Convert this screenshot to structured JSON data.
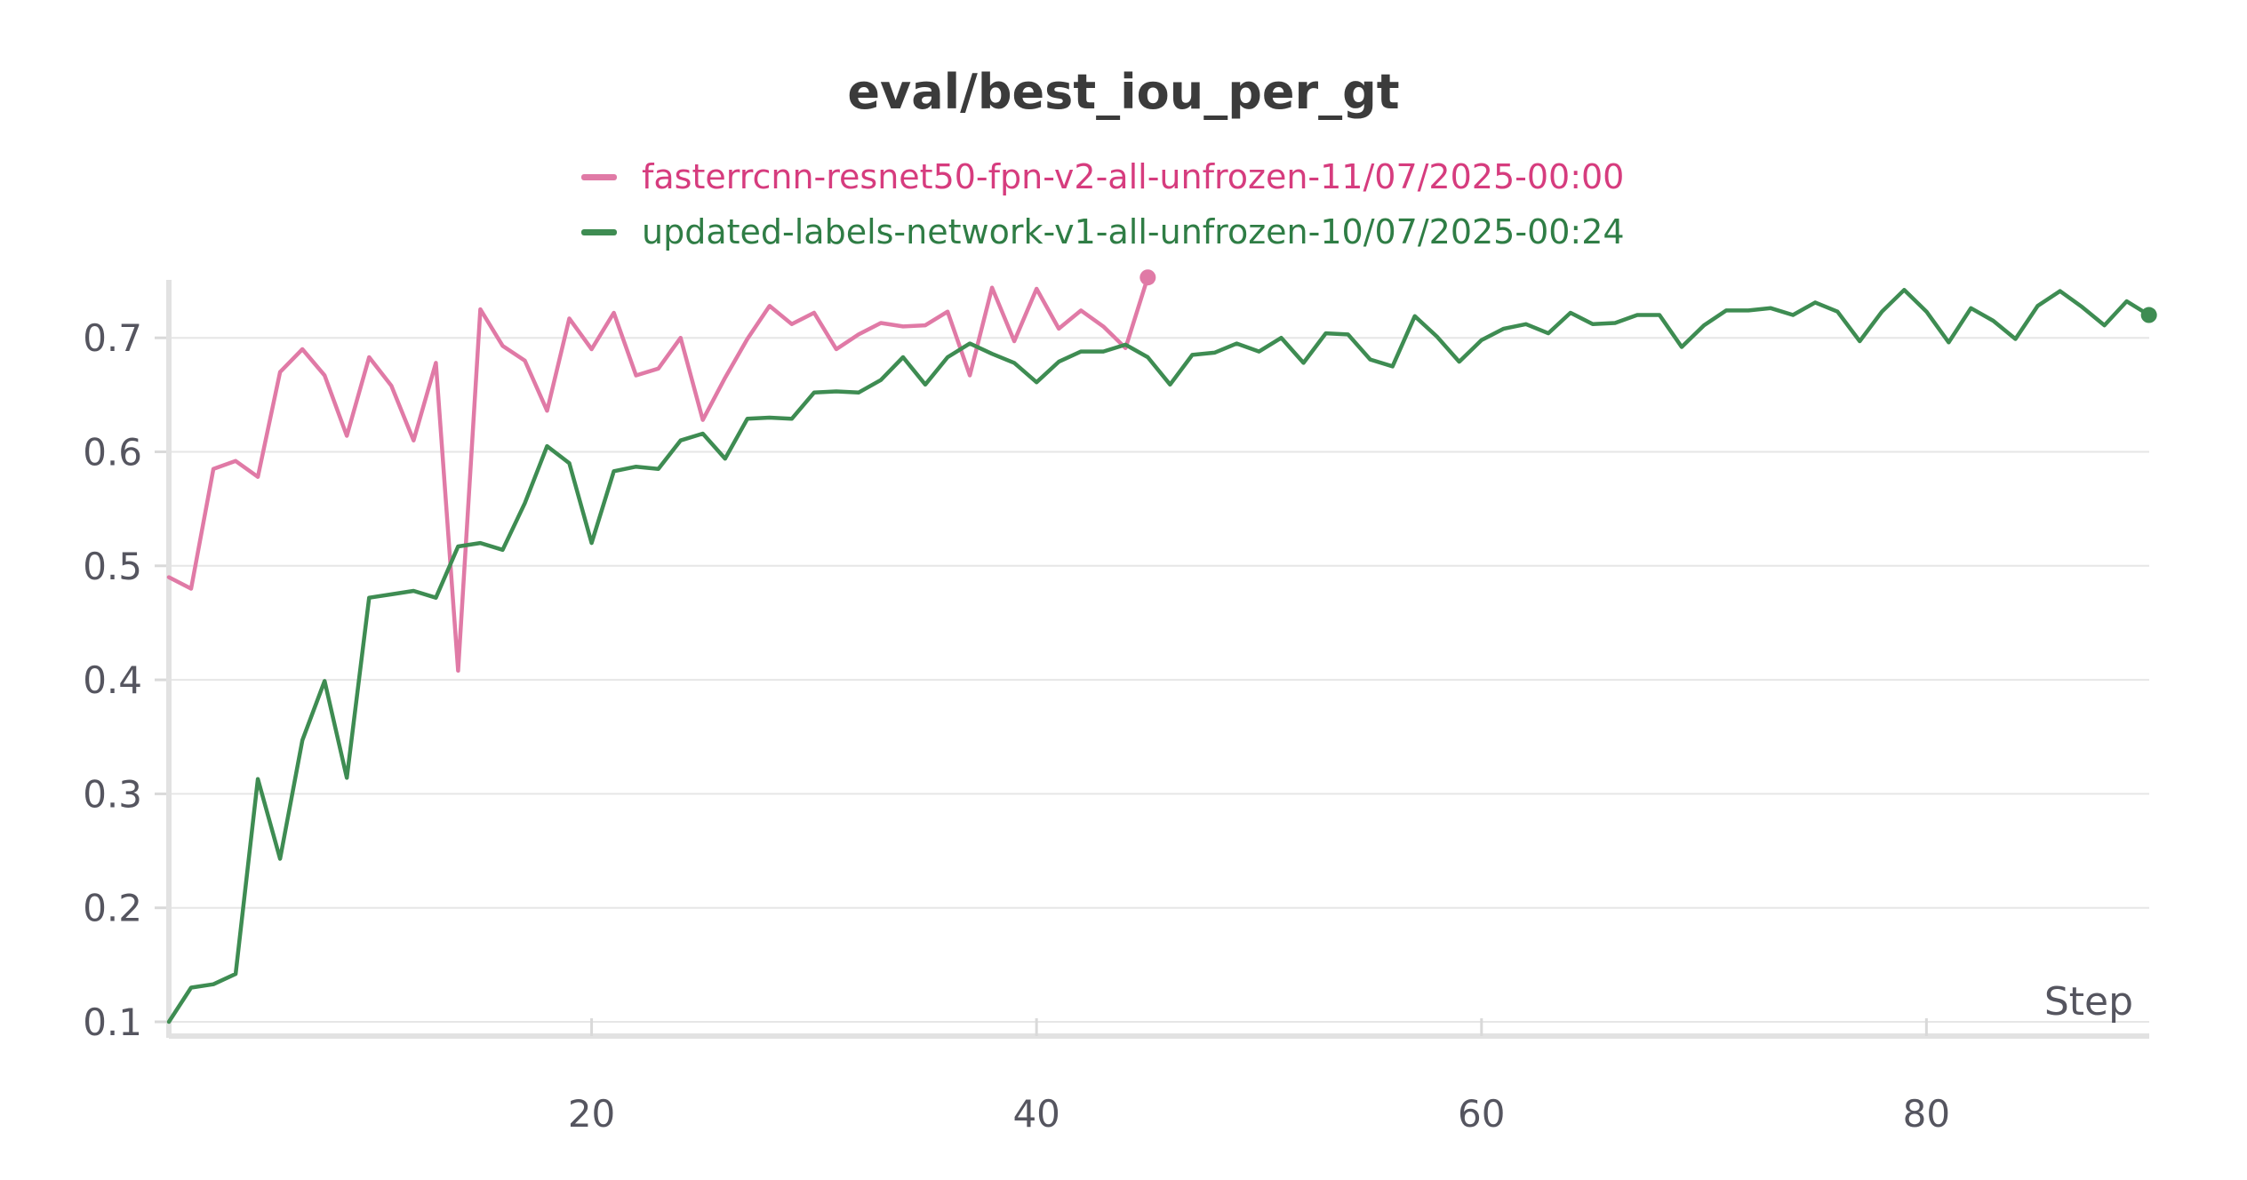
{
  "chart_data": {
    "type": "line",
    "title": "eval/best_iou_per_gt",
    "xlabel": "Step",
    "ylabel": "",
    "xlim": [
      1,
      90
    ],
    "ylim": [
      0.1,
      0.75
    ],
    "x_ticks": [
      20,
      40,
      60,
      80
    ],
    "y_ticks": [
      0.1,
      0.2,
      0.3,
      0.4,
      0.5,
      0.6,
      0.7
    ],
    "grid": true,
    "legend_position": "top-center",
    "series": [
      {
        "name": "fasterrcnn-resnet50-fpn-v2-all-unfrozen-11/07/2025-00:00",
        "color": "#e07aa6",
        "legend_text_color": "#d63c7e",
        "x": [
          1,
          2,
          3,
          4,
          5,
          6,
          7,
          8,
          9,
          10,
          11,
          12,
          13,
          14,
          15,
          16,
          17,
          18,
          19,
          20,
          21,
          22,
          23,
          24,
          25,
          26,
          27,
          28,
          29,
          30,
          31,
          32,
          33,
          34,
          35,
          36,
          37,
          38,
          39,
          40,
          41,
          42,
          43,
          44,
          45
        ],
        "values": [
          0.49,
          0.48,
          0.585,
          0.592,
          0.578,
          0.67,
          0.69,
          0.667,
          0.614,
          0.683,
          0.658,
          0.61,
          0.678,
          0.408,
          0.725,
          0.693,
          0.68,
          0.636,
          0.717,
          0.69,
          0.722,
          0.667,
          0.673,
          0.7,
          0.628,
          0.665,
          0.699,
          0.728,
          0.712,
          0.722,
          0.69,
          0.703,
          0.713,
          0.71,
          0.711,
          0.723,
          0.667,
          0.744,
          0.697,
          0.743,
          0.708,
          0.724,
          0.71,
          0.691,
          0.753
        ]
      },
      {
        "name": "updated-labels-network-v1-all-unfrozen-10/07/2025-00:24",
        "color": "#3e8c52",
        "legend_text_color": "#2f7d45",
        "x": [
          1,
          2,
          3,
          4,
          5,
          6,
          7,
          8,
          9,
          10,
          11,
          12,
          13,
          14,
          15,
          16,
          17,
          18,
          19,
          20,
          21,
          22,
          23,
          24,
          25,
          26,
          27,
          28,
          29,
          30,
          31,
          32,
          33,
          34,
          35,
          36,
          37,
          38,
          39,
          40,
          41,
          42,
          43,
          44,
          45,
          46,
          47,
          48,
          49,
          50,
          51,
          52,
          53,
          54,
          55,
          56,
          57,
          58,
          59,
          60,
          61,
          62,
          63,
          64,
          65,
          66,
          67,
          68,
          69,
          70,
          71,
          72,
          73,
          74,
          75,
          76,
          77,
          78,
          79,
          80,
          81,
          82,
          83,
          84,
          85,
          86,
          87,
          88,
          89,
          90
        ],
        "values": [
          0.1,
          0.13,
          0.133,
          0.142,
          0.313,
          0.243,
          0.347,
          0.399,
          0.314,
          0.472,
          0.475,
          0.478,
          0.472,
          0.517,
          0.52,
          0.514,
          0.555,
          0.605,
          0.59,
          0.52,
          0.583,
          0.587,
          0.585,
          0.61,
          0.616,
          0.594,
          0.629,
          0.63,
          0.629,
          0.652,
          0.653,
          0.652,
          0.663,
          0.683,
          0.659,
          0.683,
          0.695,
          0.686,
          0.678,
          0.661,
          0.679,
          0.688,
          0.688,
          0.694,
          0.683,
          0.659,
          0.685,
          0.687,
          0.695,
          0.688,
          0.7,
          0.678,
          0.704,
          0.703,
          0.681,
          0.675,
          0.719,
          0.701,
          0.679,
          0.698,
          0.708,
          0.712,
          0.704,
          0.722,
          0.712,
          0.713,
          0.72,
          0.72,
          0.692,
          0.711,
          0.724,
          0.724,
          0.726,
          0.72,
          0.731,
          0.723,
          0.697,
          0.723,
          0.742,
          0.723,
          0.696,
          0.726,
          0.715,
          0.699,
          0.728,
          0.741,
          0.727,
          0.711,
          0.732,
          0.72
        ]
      }
    ]
  }
}
